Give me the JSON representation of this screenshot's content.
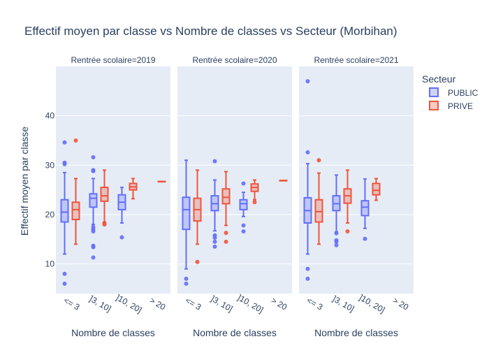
{
  "colors": {
    "PUBLIC": "#636efa",
    "PRIVE": "#ef553b",
    "panel_bg": "#e5ecf6",
    "grid": "#ffffff",
    "text": "#2a3f5f"
  },
  "chart_data": {
    "type": "box",
    "title": "Effectif moyen par classe vs Nombre de classes vs Secteur (Morbihan)",
    "ylabel": "Effectif moyen par classe",
    "xlabel": "Nombre de classes",
    "ylim": [
      4,
      50
    ],
    "yticks": [
      10,
      20,
      30,
      40
    ],
    "grid": true,
    "legend_title": "Secteur",
    "legend_position": "right",
    "categories": [
      "<= 3",
      "]3, 10]",
      "]10, 20]",
      "> 20"
    ],
    "series": [
      {
        "name": "PUBLIC",
        "color_key": "PUBLIC"
      },
      {
        "name": "PRIVE",
        "color_key": "PRIVE"
      }
    ],
    "panels": [
      {
        "title": "Rentrée scolaire=2019",
        "boxes": [
          {
            "series": "PUBLIC",
            "category": "<= 3",
            "q1": 18.5,
            "median": 20.5,
            "q3": 23,
            "whisker_low": 12,
            "whisker_high": 28.5,
            "outliers": [
              34.6,
              30.5,
              30.2,
              8,
              6
            ]
          },
          {
            "series": "PRIVE",
            "category": "<= 3",
            "q1": 19,
            "median": 21,
            "q3": 22.5,
            "whisker_low": 14,
            "whisker_high": 27.3,
            "outliers": [
              35
            ]
          },
          {
            "series": "PUBLIC",
            "category": "]3, 10]",
            "q1": 21.5,
            "median": 23.3,
            "q3": 24.2,
            "whisker_low": 18,
            "whisker_high": 27.3,
            "outliers": [
              31.6,
              29,
              28.8,
              17.5,
              17,
              16.6,
              13.7,
              13.4,
              11.3
            ]
          },
          {
            "series": "PRIVE",
            "category": "]3, 10]",
            "q1": 22.7,
            "median": 23.8,
            "q3": 25.5,
            "whisker_low": 18.5,
            "whisker_high": 29,
            "outliers": [
              18.2,
              18
            ]
          },
          {
            "series": "PUBLIC",
            "category": "]10, 20]",
            "q1": 21,
            "median": 22.5,
            "q3": 24,
            "whisker_low": 18.3,
            "whisker_high": 25.5,
            "outliers": [
              15.4
            ]
          },
          {
            "series": "PRIVE",
            "category": "]10, 20]",
            "q1": 25,
            "median": 25.6,
            "q3": 26.3,
            "whisker_low": 23.2,
            "whisker_high": 27.3,
            "outliers": []
          },
          {
            "series": "PRIVE",
            "category": "> 20",
            "q1": 26.7,
            "median": 26.7,
            "q3": 26.7,
            "whisker_low": 26.7,
            "whisker_high": 26.7,
            "outliers": []
          }
        ]
      },
      {
        "title": "Rentrée scolaire=2020",
        "boxes": [
          {
            "series": "PUBLIC",
            "category": "<= 3",
            "q1": 17,
            "median": 21,
            "q3": 23.5,
            "whisker_low": 9,
            "whisker_high": 31,
            "outliers": [
              7,
              6
            ]
          },
          {
            "series": "PRIVE",
            "category": "<= 3",
            "q1": 18.7,
            "median": 21,
            "q3": 23.3,
            "whisker_low": 14,
            "whisker_high": 29,
            "outliers": [
              10.4
            ]
          },
          {
            "series": "PUBLIC",
            "category": "]3, 10]",
            "q1": 20.8,
            "median": 22.2,
            "q3": 23.8,
            "whisker_low": 16.7,
            "whisker_high": 27,
            "outliers": [
              30.8,
              15.8,
              15.3,
              14.5,
              13.5
            ]
          },
          {
            "series": "PRIVE",
            "category": "]3, 10]",
            "q1": 22.2,
            "median": 23.5,
            "q3": 25.2,
            "whisker_low": 17.8,
            "whisker_high": 28.7,
            "outliers": [
              16.3,
              14.5
            ]
          },
          {
            "series": "PUBLIC",
            "category": "]10, 20]",
            "q1": 21,
            "median": 22.2,
            "q3": 23,
            "whisker_low": 19.6,
            "whisker_high": 24.5,
            "outliers": [
              26.3,
              17.8,
              16.6
            ]
          },
          {
            "series": "PRIVE",
            "category": "]10, 20]",
            "q1": 24.7,
            "median": 25.5,
            "q3": 26.2,
            "whisker_low": 23,
            "whisker_high": 27,
            "outliers": [
              22.5
            ]
          },
          {
            "series": "PRIVE",
            "category": "> 20",
            "q1": 26.9,
            "median": 26.9,
            "q3": 26.9,
            "whisker_low": 26.9,
            "whisker_high": 26.9,
            "outliers": []
          }
        ]
      },
      {
        "title": "Rentrée scolaire=2021",
        "boxes": [
          {
            "series": "PUBLIC",
            "category": "<= 3",
            "q1": 18.3,
            "median": 20.8,
            "q3": 23.4,
            "whisker_low": 12,
            "whisker_high": 30.3,
            "outliers": [
              47,
              32.6,
              9,
              7
            ]
          },
          {
            "series": "PRIVE",
            "category": "<= 3",
            "q1": 18.5,
            "median": 20.6,
            "q3": 23,
            "whisker_low": 14,
            "whisker_high": 28.4,
            "outliers": [
              31
            ]
          },
          {
            "series": "PUBLIC",
            "category": "]3, 10]",
            "q1": 20.8,
            "median": 22.2,
            "q3": 23.8,
            "whisker_low": 16.5,
            "whisker_high": 28,
            "outliers": [
              16.2,
              14.8,
              14.5,
              13.8
            ]
          },
          {
            "series": "PRIVE",
            "category": "]3, 10]",
            "q1": 22.3,
            "median": 23.8,
            "q3": 25.2,
            "whisker_low": 18.3,
            "whisker_high": 29,
            "outliers": [
              16.6
            ]
          },
          {
            "series": "PUBLIC",
            "category": "]10, 20]",
            "q1": 19.8,
            "median": 21.5,
            "q3": 22.8,
            "whisker_low": 17.2,
            "whisker_high": 27.2,
            "outliers": [
              15.1
            ]
          },
          {
            "series": "PRIVE",
            "category": "]10, 20]",
            "q1": 24,
            "median": 24.9,
            "q3": 26.3,
            "whisker_low": 22.9,
            "whisker_high": 27.3,
            "outliers": []
          }
        ]
      }
    ]
  }
}
